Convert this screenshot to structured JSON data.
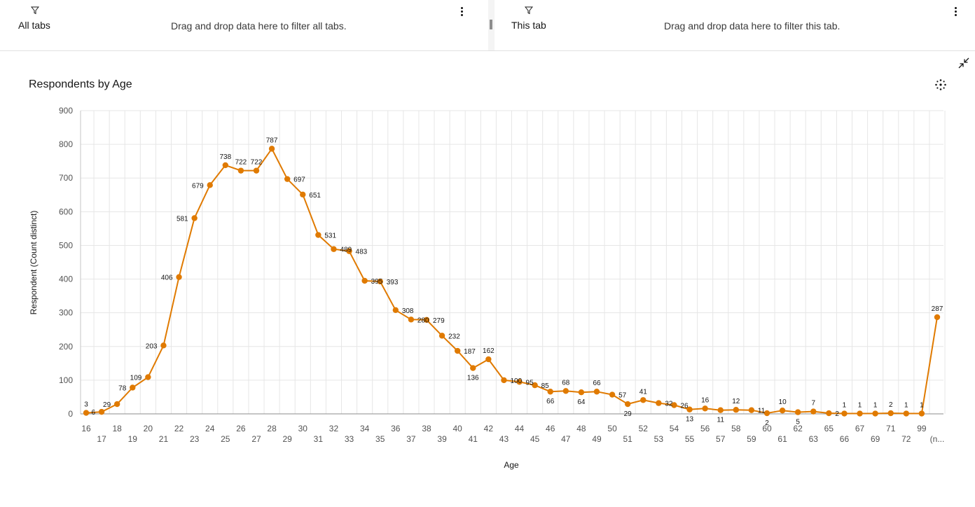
{
  "filters": {
    "all_tabs": {
      "label": "All tabs",
      "hint": "Drag and drop data here to filter all tabs."
    },
    "this_tab": {
      "label": "This tab",
      "hint": "Drag and drop data here to filter this tab."
    },
    "icons": {
      "filter": "funnel-icon",
      "menu": "overflow-menu-icon",
      "divider": "drag-handle-icon"
    }
  },
  "widget": {
    "title": "Respondents by Age",
    "icons": {
      "collapse": "collapse-icon",
      "options": "chart-options-icon"
    }
  },
  "chart_data": {
    "type": "line",
    "title": "Respondents by Age",
    "xlabel": "Age",
    "ylabel": "Respondent (Count distinct)",
    "ylim": [
      0,
      900
    ],
    "yticks": [
      0,
      100,
      200,
      300,
      400,
      500,
      600,
      700,
      800,
      900
    ],
    "grid": true,
    "color": "#e07a00",
    "categories": [
      "16",
      "17",
      "18",
      "19",
      "20",
      "21",
      "22",
      "23",
      "24",
      "25",
      "26",
      "27",
      "28",
      "29",
      "30",
      "31",
      "32",
      "33",
      "34",
      "35",
      "36",
      "37",
      "38",
      "39",
      "40",
      "41",
      "42",
      "43",
      "44",
      "45",
      "46",
      "47",
      "48",
      "49",
      "50",
      "51",
      "52",
      "53",
      "54",
      "55",
      "56",
      "57",
      "58",
      "59",
      "60",
      "61",
      "62",
      "63",
      "65",
      "66",
      "67",
      "69",
      "71",
      "72",
      "99",
      "(n..."
    ],
    "series": [
      {
        "values": [
          3,
          6,
          29,
          78,
          109,
          203,
          406,
          581,
          679,
          738,
          722,
          722,
          787,
          697,
          651,
          531,
          489,
          483,
          395,
          393,
          308,
          280,
          279,
          232,
          187,
          136,
          162,
          100,
          95,
          85,
          66,
          68,
          64,
          66,
          57,
          29,
          41,
          32,
          26,
          13,
          16,
          11,
          12,
          11,
          2,
          10,
          5,
          7,
          2,
          1,
          1,
          1,
          2,
          1,
          1,
          287
        ]
      }
    ]
  }
}
